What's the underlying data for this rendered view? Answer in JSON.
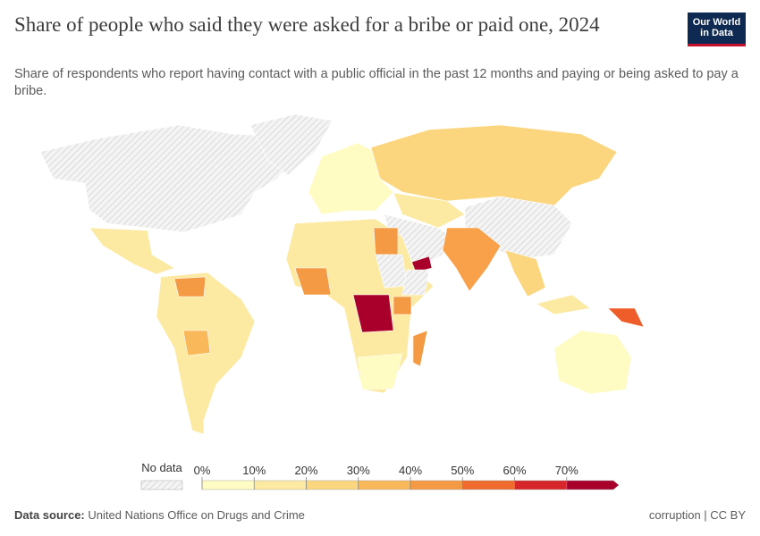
{
  "header": {
    "title": "Share of people who said they were asked for a bribe or paid one, 2024",
    "subtitle": "Share of respondents who report having contact with a public official in the past 12 months and paying or being asked to pay a bribe."
  },
  "logo": {
    "line1": "Our World",
    "line2": "in Data"
  },
  "legend": {
    "no_data_label": "No data",
    "xlim": [
      0,
      80
    ],
    "ticks": [
      {
        "value": 0,
        "label": "0%"
      },
      {
        "value": 10,
        "label": "10%"
      },
      {
        "value": 20,
        "label": "20%"
      },
      {
        "value": 30,
        "label": "30%"
      },
      {
        "value": 40,
        "label": "40%"
      },
      {
        "value": 50,
        "label": "50%"
      },
      {
        "value": 60,
        "label": "60%"
      },
      {
        "value": 70,
        "label": "70%"
      }
    ],
    "colors": [
      "#fefbc3",
      "#fce9a2",
      "#fbd67e",
      "#f9b95a",
      "#f59a44",
      "#ee6a2d",
      "#d6262a",
      "#a8002a"
    ]
  },
  "footer": {
    "source_label": "Data source:",
    "source": "United Nations Office on Drugs and Crime",
    "license": "corruption | CC BY"
  }
}
